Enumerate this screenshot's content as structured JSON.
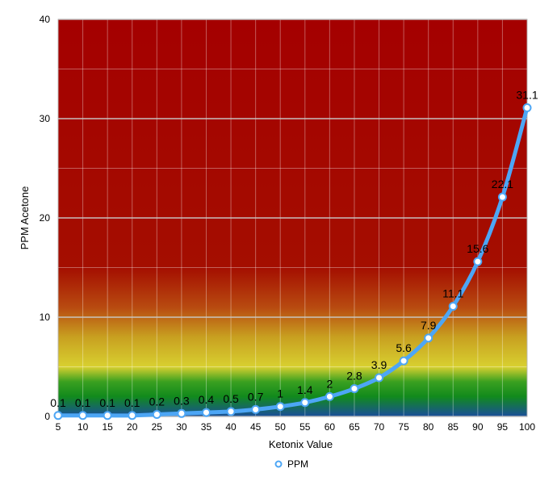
{
  "chart_data": {
    "type": "line",
    "x": [
      5,
      10,
      15,
      20,
      25,
      30,
      35,
      40,
      45,
      50,
      55,
      60,
      65,
      70,
      75,
      80,
      85,
      90,
      95,
      100
    ],
    "series": [
      {
        "name": "PPM",
        "values": [
          0.1,
          0.1,
          0.1,
          0.1,
          0.2,
          0.3,
          0.4,
          0.5,
          0.7,
          1,
          1.4,
          2,
          2.8,
          3.9,
          5.6,
          7.9,
          11.1,
          15.6,
          22.1,
          31.1
        ],
        "labels": [
          "0.1",
          "0.1",
          "0.1",
          "0.1",
          "0.2",
          "0.3",
          "0.4",
          "0.5",
          "0.7",
          "1",
          "1.4",
          "2",
          "2.8",
          "3.9",
          "5.6",
          "7.9",
          "11.1",
          "15.6",
          "22.1",
          "31.1"
        ],
        "color": "#4da6f5"
      }
    ],
    "xlabel": "Ketonix Value",
    "ylabel": "PPM Acetone",
    "ylim": [
      0,
      40
    ],
    "yticks": [
      0,
      10,
      20,
      30,
      40
    ],
    "xtick_labels": [
      "5",
      "10",
      "15",
      "20",
      "25",
      "30",
      "35",
      "40",
      "45",
      "50",
      "55",
      "60",
      "65",
      "70",
      "75",
      "80",
      "85",
      "90",
      "95",
      "100"
    ],
    "grid": true,
    "legend": {
      "position": "bottom-center",
      "entries": [
        "PPM"
      ]
    },
    "background_gradient": [
      {
        "value": 40,
        "color": "#a40000"
      },
      {
        "value": 15,
        "color": "#a40e00"
      },
      {
        "value": 11,
        "color": "#b84a10"
      },
      {
        "value": 8,
        "color": "#c8a020"
      },
      {
        "value": 5,
        "color": "#d8d030"
      },
      {
        "value": 3.5,
        "color": "#3aa020"
      },
      {
        "value": 2,
        "color": "#118a1c"
      },
      {
        "value": 0,
        "color": "#1a4e9a"
      }
    ]
  }
}
